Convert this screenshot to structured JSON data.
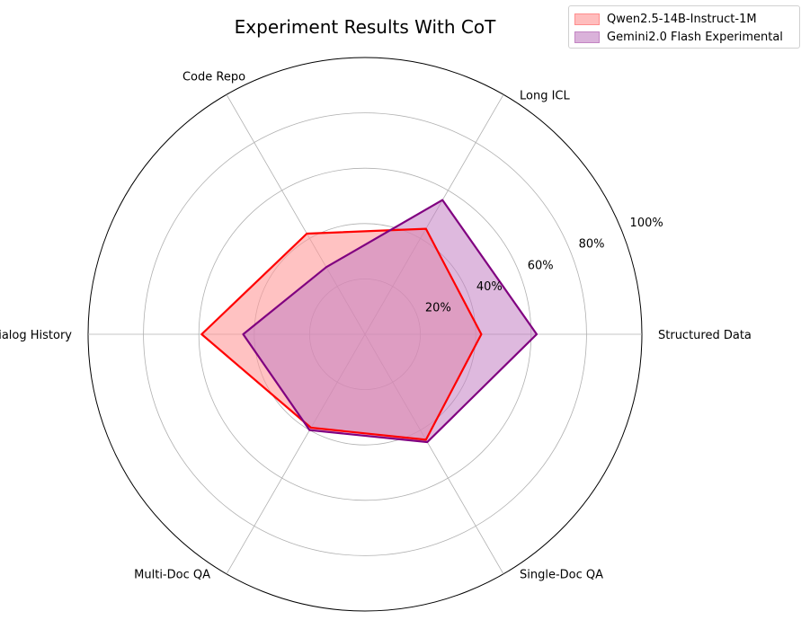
{
  "chart_data": {
    "type": "radar",
    "title": "Experiment Results With CoT",
    "axes": [
      "Structured Data",
      "Long ICL",
      "Code Repo",
      "Long Dialog History",
      "Multi-Doc QA",
      "Single-Doc QA"
    ],
    "rlim": [
      0,
      100
    ],
    "radial_ticks": [
      20,
      40,
      60,
      80,
      100
    ],
    "radial_tick_labels": [
      "20%",
      "40%",
      "60%",
      "80%",
      "100%"
    ],
    "grid": true,
    "legend_position": "top-right",
    "series": [
      {
        "name": "Qwen2.5-14B-Instruct-1M",
        "values": [
          42,
          44,
          42,
          59,
          39,
          44
        ],
        "line_color": "#ff0000",
        "fill_color": "#ff9999"
      },
      {
        "name": "Gemini2.0 Flash Experimental",
        "values": [
          62,
          56,
          28,
          44,
          40,
          45
        ],
        "line_color": "#800080",
        "fill_color": "#c27fc2"
      }
    ]
  }
}
